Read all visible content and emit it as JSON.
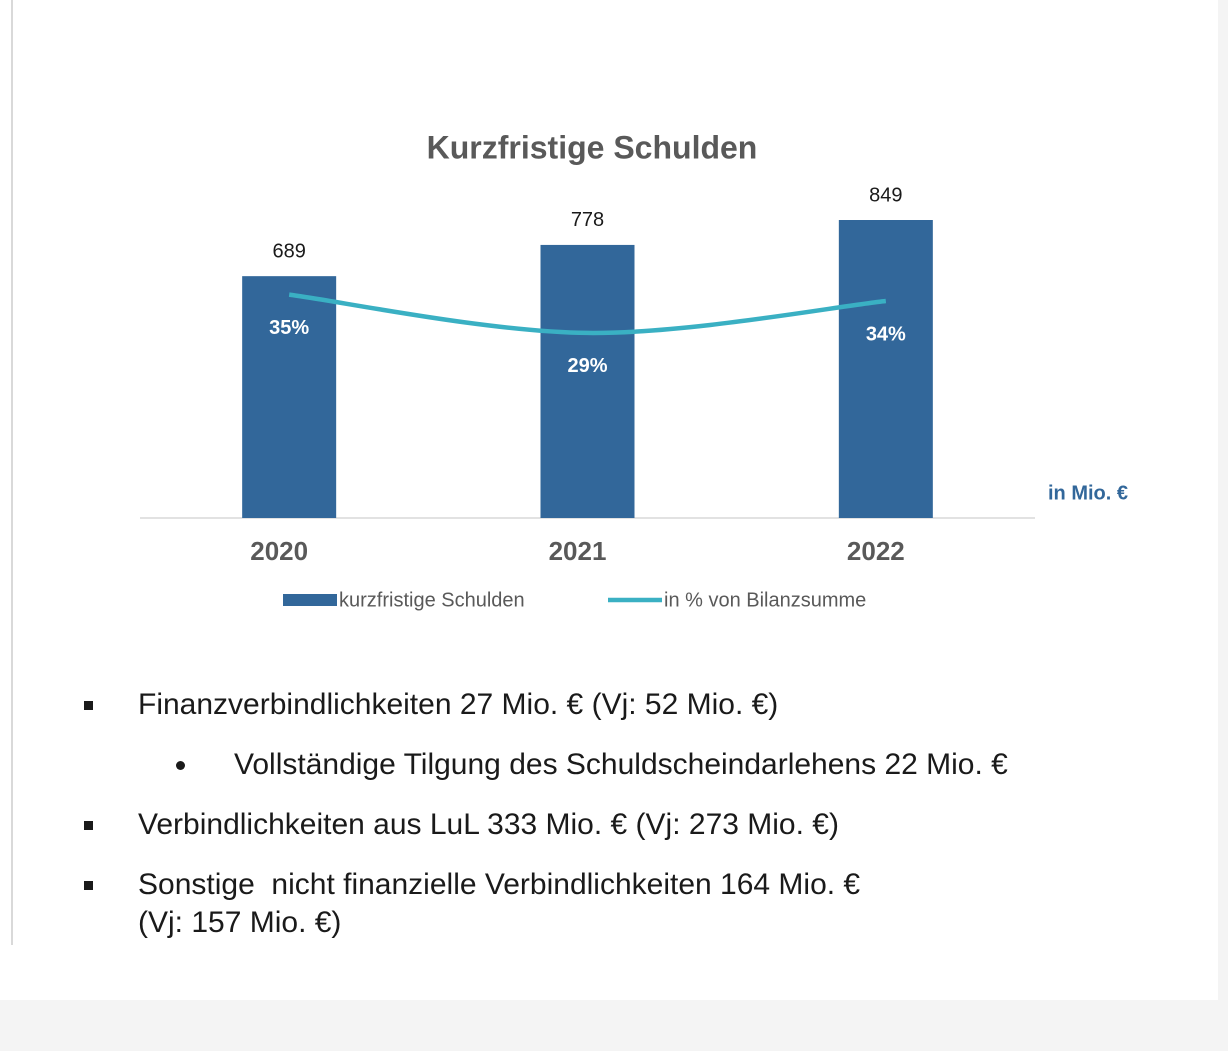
{
  "chart_data": {
    "type": "bar",
    "title": "Kurzfristige Schulden",
    "categories": [
      "2020",
      "2021",
      "2022"
    ],
    "series": [
      {
        "name": "kurzfristige Schulden",
        "type": "bar",
        "color": "#32679a",
        "values": [
          689,
          778,
          849
        ]
      },
      {
        "name": "in % von Bilanzsumme",
        "type": "line",
        "axis": "y2",
        "color": "#3ab0c3",
        "values": [
          35,
          29,
          34
        ],
        "value_labels": [
          "35%",
          "29%",
          "34%"
        ]
      }
    ],
    "ylim": [
      0,
      1000
    ],
    "y2lim": [
      0,
      55
    ],
    "annotation": "in Mio. €"
  },
  "bullets": [
    {
      "lines": [
        "Finanzverbindlichkeiten 27 Mio. € (Vj: 52 Mio. €)"
      ],
      "children": [
        "Vollständige Tilgung des Schuldscheindarlehens 22 Mio. €"
      ]
    },
    {
      "lines": [
        "Verbindlichkeiten aus LuL 333 Mio. € (Vj: 273 Mio. €)"
      ],
      "children": []
    },
    {
      "lines": [
        "Sonstige  nicht finanzielle Verbindlichkeiten 164 Mio. €",
        "(Vj: 157 Mio. €)"
      ],
      "children": []
    }
  ]
}
